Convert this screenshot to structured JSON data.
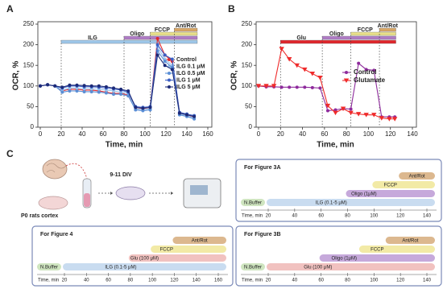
{
  "chart_data": [
    {
      "type": "line",
      "panel": "A",
      "ylabel": "OCR, %",
      "xlabel": "Time, min",
      "x": [
        0,
        7,
        14,
        21,
        28,
        35,
        42,
        49,
        56,
        63,
        70,
        77,
        84,
        91,
        98,
        105,
        112,
        119,
        126,
        133,
        140,
        147
      ],
      "series": [
        {
          "name": "Control",
          "color": "#e0282e",
          "marker": "circle",
          "values": [
            100,
            103,
            100,
            88,
            92,
            92,
            90,
            90,
            88,
            85,
            82,
            82,
            78,
            48,
            45,
            48,
            215,
            175,
            160,
            35,
            30,
            25
          ]
        },
        {
          "name": "ILG 0.1 μM",
          "color": "#9cc3ea",
          "marker": "circle",
          "values": [
            100,
            103,
            100,
            90,
            95,
            95,
            93,
            93,
            92,
            90,
            88,
            85,
            82,
            45,
            42,
            45,
            195,
            165,
            150,
            32,
            28,
            22
          ]
        },
        {
          "name": "ILG 0.5 μM",
          "color": "#5b8fd6",
          "marker": "circle",
          "values": [
            100,
            103,
            100,
            85,
            88,
            88,
            86,
            86,
            85,
            83,
            80,
            80,
            76,
            42,
            40,
            42,
            185,
            160,
            145,
            30,
            26,
            20
          ]
        },
        {
          "name": "ILG  1  μM",
          "color": "#3b5fc4",
          "marker": "circle",
          "values": [
            100,
            103,
            100,
            95,
            100,
            100,
            98,
            98,
            97,
            95,
            93,
            90,
            85,
            50,
            48,
            50,
            200,
            175,
            165,
            36,
            32,
            28
          ]
        },
        {
          "name": "ILG  5  μM",
          "color": "#1c2a78",
          "marker": "circle",
          "values": [
            100,
            103,
            100,
            97,
            102,
            102,
            101,
            100,
            100,
            98,
            95,
            92,
            88,
            48,
            46,
            48,
            175,
            150,
            140,
            34,
            30,
            26
          ]
        }
      ],
      "xlim": [
        0,
        160
      ],
      "ylim": [
        0,
        250
      ],
      "xticks": [
        0,
        20,
        40,
        60,
        80,
        100,
        120,
        140,
        160
      ],
      "yticks": [
        0,
        50,
        100,
        150,
        200,
        250
      ],
      "legend": "right",
      "treatments": [
        {
          "label": "ILG",
          "start": 20,
          "end": 150,
          "color": "#9fc8ea"
        },
        {
          "label": "Oligo",
          "start": 80,
          "end": 150,
          "color": "#b07cc6"
        },
        {
          "label": "FCCP",
          "start": 105,
          "end": 150,
          "color": "#e9e08a"
        },
        {
          "label": "Ant/Rot",
          "start": 128,
          "end": 150,
          "color": "#d9a766"
        }
      ]
    },
    {
      "type": "line",
      "panel": "B",
      "ylabel": "OCR, %",
      "xlabel": "Time, min",
      "x": [
        0,
        7,
        14,
        21,
        28,
        35,
        42,
        49,
        56,
        63,
        70,
        77,
        84,
        91,
        98,
        105,
        112,
        119,
        124
      ],
      "series": [
        {
          "name": "Control",
          "color": "#8e2a9c",
          "marker": "circle",
          "values": [
            100,
            98,
            98,
            97,
            97,
            97,
            97,
            96,
            95,
            40,
            42,
            45,
            44,
            155,
            140,
            138,
            25,
            25,
            25
          ]
        },
        {
          "name": "Glutamate",
          "color": "#ef2b2b",
          "marker": "triangle",
          "values": [
            100,
            100,
            100,
            190,
            165,
            150,
            140,
            130,
            120,
            52,
            35,
            45,
            35,
            32,
            30,
            30,
            22,
            20,
            20
          ]
        }
      ],
      "xlim": [
        0,
        140
      ],
      "ylim": [
        0,
        250
      ],
      "xticks": [
        0,
        20,
        40,
        60,
        80,
        100,
        120,
        140
      ],
      "yticks": [
        0,
        50,
        100,
        150,
        200,
        250
      ],
      "legend": "right",
      "treatments": [
        {
          "label": "Glu",
          "start": 20,
          "end": 125,
          "color": "#e0282e"
        },
        {
          "label": "Oligo",
          "start": 58,
          "end": 125,
          "color": "#b07cc6"
        },
        {
          "label": "FCCP",
          "start": 84,
          "end": 125,
          "color": "#e9e08a"
        },
        {
          "label": "Ant/Rot",
          "start": 110,
          "end": 125,
          "color": "#d9a766"
        }
      ]
    }
  ],
  "panel_c": {
    "label": "C",
    "source": "P0 rats cortex",
    "culture": "9-11 DIV",
    "protocols": [
      {
        "title": "For Figure 3A",
        "axis_label": "Time, min",
        "ticks": [
          20,
          40,
          60,
          80,
          100,
          120,
          140
        ],
        "steps": [
          "N.Buffer",
          "ILG (0.1-5 μM)",
          "Oligo (1μM)",
          "FCCP",
          "Ant/Rot"
        ]
      },
      {
        "title": "For Figure 4",
        "axis_label": "Time, min",
        "ticks": [
          20,
          40,
          60,
          80,
          100,
          120,
          140,
          160
        ],
        "steps": [
          "N.Buffer",
          "ILG (0.1-5 μM)",
          "Glu (100 μM)",
          "FCCP",
          "Ant/Rot"
        ]
      },
      {
        "title": "For Figure 3B",
        "axis_label": "Time, min",
        "ticks": [
          20,
          40,
          60,
          80,
          100,
          120,
          140
        ],
        "steps": [
          "N.Buffer",
          "Glu (100 μM)",
          "Oligo (1μM)",
          "FCCP",
          "Ant/Rot"
        ]
      }
    ]
  }
}
